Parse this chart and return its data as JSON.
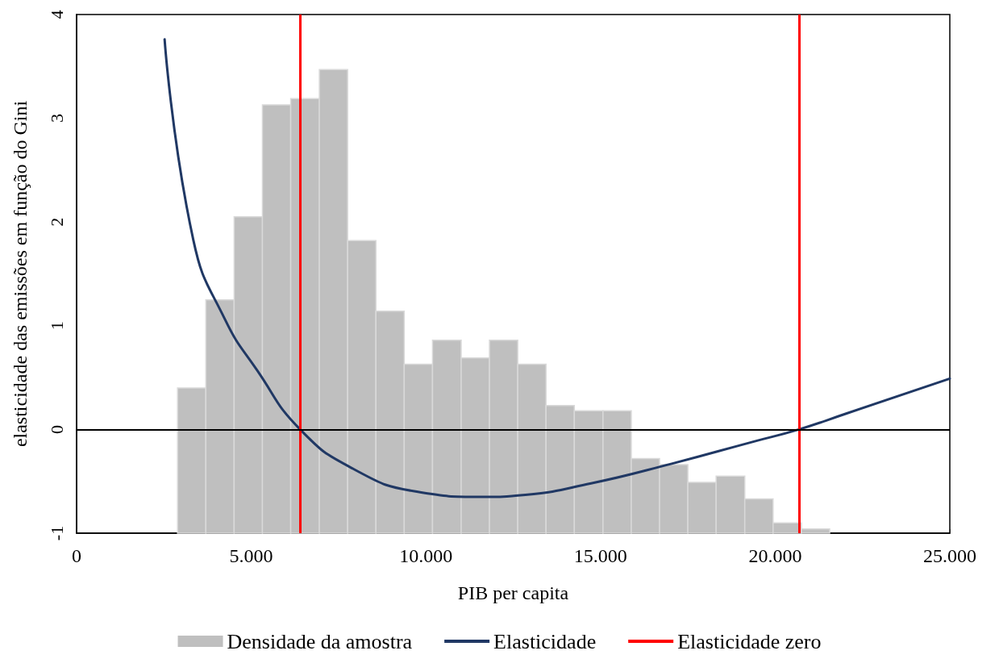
{
  "chart_data": {
    "type": "histogram",
    "xlabel": "PIB per capita",
    "ylabel": "elasticidade das emissões em função do Gini",
    "xlim": [
      0,
      25000
    ],
    "xticks": [
      0,
      {
        "value": 5000,
        "label": "5.000"
      },
      {
        "value": 10000,
        "label": "10.000"
      },
      {
        "value": 15000,
        "label": "15.000"
      },
      {
        "value": 20000,
        "label": "20.000"
      },
      {
        "value": 25000,
        "label": "25.000"
      }
    ],
    "ylim": [
      -1,
      4
    ],
    "yticks": [
      -1,
      0,
      1,
      2,
      3,
      4
    ],
    "grid": false,
    "legend": "bottom",
    "series": [
      {
        "name": "Densidade da amostra",
        "color": "#bfbfbf",
        "bins": [
          2890,
          3700,
          4510,
          5320,
          6130,
          6950,
          7760,
          8570,
          9380,
          10190,
          11010,
          11820,
          12630,
          13440,
          14250,
          15070,
          15880,
          16690,
          17500,
          18310,
          19130,
          19940,
          20750,
          21560
        ],
        "values": [
          1.4,
          2.25,
          3.05,
          4.13,
          4.19,
          4.47,
          2.82,
          2.14,
          1.63,
          1.86,
          1.69,
          1.86,
          1.63,
          1.23,
          1.18,
          1.18,
          0.72,
          0.66,
          0.49,
          0.55,
          0.33,
          0.1,
          0.04
        ],
        "base": [
          -1,
          -1,
          -1,
          -1,
          -1,
          -1,
          -1,
          -1,
          -1,
          -1,
          -1,
          -1,
          -1,
          -1,
          -1,
          -1,
          -1,
          -1,
          -1,
          -1,
          -1,
          -1,
          -1
        ]
      },
      {
        "type": "line",
        "name": "Elasticidade",
        "color": "#203864",
        "x": [
          2520,
          3340,
          4250,
          5170,
          6400,
          7920,
          9740,
          11590,
          12850,
          14730,
          17040,
          19350,
          20680,
          22050,
          25000
        ],
        "values": [
          3.76,
          1.83,
          1.06,
          0.57,
          0,
          -0.38,
          -0.6,
          -0.65,
          -0.63,
          -0.52,
          -0.33,
          -0.12,
          0,
          0.155,
          0.49
        ]
      }
    ],
    "ref_lines": [
      {
        "axis": "x",
        "value": 6400,
        "label": "Elasticidade zero",
        "color": "#ff0000"
      },
      {
        "axis": "x",
        "value": 20680,
        "color": "#ff0000"
      },
      {
        "axis": "y",
        "value": 0,
        "color": "#000000"
      }
    ]
  }
}
